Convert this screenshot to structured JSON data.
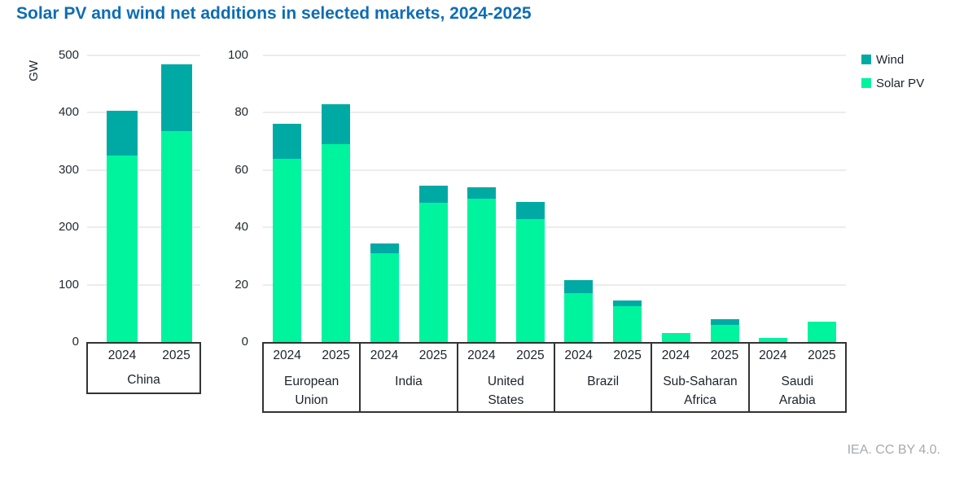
{
  "title": "Solar PV and wind net additions in selected markets, 2024-2025",
  "attribution": "IEA. CC BY 4.0.",
  "colors": {
    "wind": "#00aaa4",
    "solar_pv": "#00f49e",
    "title_text": "#0d6db5",
    "axis_text": "#222a33",
    "gridline": "#ececec",
    "box_border": "#333333",
    "attribution_text": "#a6abaf"
  },
  "legend": [
    {
      "label": "Wind",
      "color_key": "wind"
    },
    {
      "label": "Solar PV",
      "color_key": "solar_pv"
    }
  ],
  "chart_data": [
    {
      "type": "bar",
      "stacked": true,
      "ylabel": "GW",
      "ylim": [
        0,
        500
      ],
      "yticks": [
        "0",
        "100",
        "200",
        "300",
        "400",
        "500"
      ],
      "grid": true,
      "years": [
        "2024",
        "2025"
      ],
      "groups": [
        {
          "label": "China",
          "bars": [
            {
              "year": "2024",
              "solar_pv": 325,
              "wind": 79,
              "total": 404
            },
            {
              "year": "2025",
              "solar_pv": 368,
              "wind": 117,
              "total": 485
            }
          ]
        }
      ]
    },
    {
      "type": "bar",
      "stacked": true,
      "ylabel": "",
      "ylim": [
        0,
        100
      ],
      "yticks": [
        "0",
        "20",
        "40",
        "60",
        "80",
        "100"
      ],
      "grid": true,
      "years": [
        "2024",
        "2025"
      ],
      "groups": [
        {
          "label": "European Union",
          "bars": [
            {
              "year": "2024",
              "solar_pv": 64,
              "wind": 12,
              "total": 76
            },
            {
              "year": "2025",
              "solar_pv": 69,
              "wind": 14,
              "total": 83
            }
          ]
        },
        {
          "label": "India",
          "bars": [
            {
              "year": "2024",
              "solar_pv": 31,
              "wind": 3.5,
              "total": 34.5
            },
            {
              "year": "2025",
              "solar_pv": 48.5,
              "wind": 6,
              "total": 54.5
            }
          ]
        },
        {
          "label": "United States",
          "bars": [
            {
              "year": "2024",
              "solar_pv": 50,
              "wind": 4,
              "total": 54
            },
            {
              "year": "2025",
              "solar_pv": 43,
              "wind": 6,
              "total": 49
            }
          ]
        },
        {
          "label": "Brazil",
          "bars": [
            {
              "year": "2024",
              "solar_pv": 17,
              "wind": 4.5,
              "total": 21.5
            },
            {
              "year": "2025",
              "solar_pv": 12.5,
              "wind": 2,
              "total": 14.5
            }
          ]
        },
        {
          "label": "Sub-Saharan Africa",
          "bars": [
            {
              "year": "2024",
              "solar_pv": 3,
              "wind": 0,
              "total": 3
            },
            {
              "year": "2025",
              "solar_pv": 6,
              "wind": 2,
              "total": 8
            }
          ]
        },
        {
          "label": "Saudi Arabia",
          "bars": [
            {
              "year": "2024",
              "solar_pv": 1.5,
              "wind": 0,
              "total": 1.5
            },
            {
              "year": "2025",
              "solar_pv": 7,
              "wind": 0,
              "total": 7
            }
          ]
        }
      ]
    }
  ]
}
